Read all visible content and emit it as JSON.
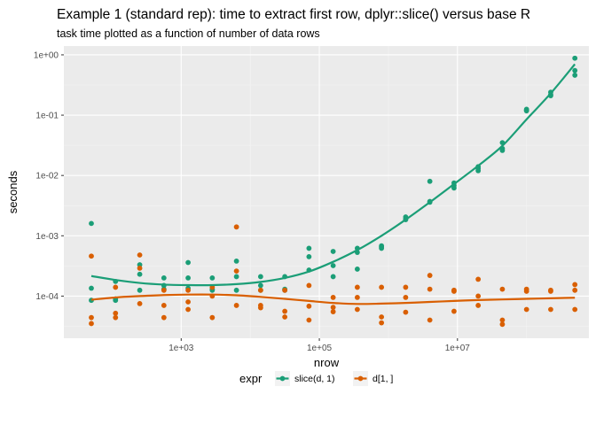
{
  "chart_data": {
    "type": "scatter",
    "title": "Example 1 (standard rep): time to extract first row, dplyr::slice() versus base R",
    "subtitle": "task time plotted as a function of number of data rows",
    "xlabel": "nrow",
    "ylabel": "seconds",
    "x_scale": "log10",
    "y_scale": "log10",
    "xlim": [
      20,
      800000000
    ],
    "ylim": [
      2e-05,
      1.4
    ],
    "x_ticks": [
      {
        "value": 1000,
        "label": "1e+03"
      },
      {
        "value": 100000,
        "label": "1e+05"
      },
      {
        "value": 10000000,
        "label": "1e+07"
      }
    ],
    "y_ticks": [
      {
        "value": 0.0001,
        "label": "1e-04"
      },
      {
        "value": 0.001,
        "label": "1e-03"
      },
      {
        "value": 0.01,
        "label": "1e-02"
      },
      {
        "value": 0.1,
        "label": "1e-01"
      },
      {
        "value": 1,
        "label": "1e+00"
      }
    ],
    "grid": true,
    "legend": {
      "title": "expr",
      "position": "bottom"
    },
    "series": [
      {
        "name": "slice(d, 1)",
        "color": "#1b9e77",
        "points": [
          [
            50,
            0.0016
          ],
          [
            50,
            0.000135
          ],
          [
            50,
            8.5e-05
          ],
          [
            112,
            0.000175
          ],
          [
            112,
            9e-05
          ],
          [
            112,
            8.5e-05
          ],
          [
            251,
            0.00033
          ],
          [
            251,
            0.00023
          ],
          [
            251,
            0.000125
          ],
          [
            562,
            0.0002
          ],
          [
            562,
            0.00015
          ],
          [
            562,
            0.00013
          ],
          [
            1259,
            0.00036
          ],
          [
            1259,
            0.0002
          ],
          [
            1259,
            0.000135
          ],
          [
            2818,
            0.0002
          ],
          [
            2818,
            0.00013
          ],
          [
            2818,
            0.000125
          ],
          [
            6310,
            0.00038
          ],
          [
            6310,
            0.00021
          ],
          [
            6310,
            0.000125
          ],
          [
            14125,
            0.00021
          ],
          [
            14125,
            0.00015
          ],
          [
            14125,
            0.000125
          ],
          [
            31623,
            0.00021
          ],
          [
            31623,
            0.00013
          ],
          [
            31623,
            0.000125
          ],
          [
            70795,
            0.00062
          ],
          [
            70795,
            0.00045
          ],
          [
            70795,
            0.00027
          ],
          [
            158489,
            0.00055
          ],
          [
            158489,
            0.00032
          ],
          [
            158489,
            0.00021
          ],
          [
            354813,
            0.00062
          ],
          [
            354813,
            0.00053
          ],
          [
            354813,
            0.00028
          ],
          [
            794328,
            0.00068
          ],
          [
            794328,
            0.00065
          ],
          [
            794328,
            0.00062
          ],
          [
            1778279,
            0.00205
          ],
          [
            1778279,
            0.0019
          ],
          [
            1778279,
            0.00185
          ],
          [
            3981072,
            0.008
          ],
          [
            3981072,
            0.0037
          ],
          [
            3981072,
            0.0036
          ],
          [
            8912509,
            0.0075
          ],
          [
            8912509,
            0.0068
          ],
          [
            8912509,
            0.0062
          ],
          [
            19952623,
            0.014
          ],
          [
            19952623,
            0.013
          ],
          [
            19952623,
            0.012
          ],
          [
            44668359,
            0.035
          ],
          [
            44668359,
            0.028
          ],
          [
            44668359,
            0.026
          ],
          [
            100000000,
            0.125
          ],
          [
            100000000,
            0.12
          ],
          [
            100000000,
            0.118
          ],
          [
            223872114,
            0.24
          ],
          [
            223872114,
            0.22
          ],
          [
            223872114,
            0.21
          ],
          [
            501187234,
            0.88
          ],
          [
            501187234,
            0.55
          ],
          [
            501187234,
            0.46
          ]
        ],
        "smooth": [
          [
            50,
            0.000215
          ],
          [
            112,
            0.000185
          ],
          [
            251,
            0.000165
          ],
          [
            562,
            0.000155
          ],
          [
            1259,
            0.000152
          ],
          [
            2818,
            0.000152
          ],
          [
            6310,
            0.000158
          ],
          [
            14125,
            0.000172
          ],
          [
            31623,
            0.0002
          ],
          [
            70795,
            0.000255
          ],
          [
            158489,
            0.00037
          ],
          [
            354813,
            0.00058
          ],
          [
            794328,
            0.001
          ],
          [
            1778279,
            0.00185
          ],
          [
            3981072,
            0.0036
          ],
          [
            8912509,
            0.0072
          ],
          [
            19952623,
            0.0145
          ],
          [
            44668359,
            0.031
          ],
          [
            100000000,
            0.085
          ],
          [
            223872114,
            0.23
          ],
          [
            501187234,
            0.7
          ]
        ]
      },
      {
        "name": "d[1, ]",
        "color": "#d95f02",
        "points": [
          [
            50,
            0.00046
          ],
          [
            50,
            4.4e-05
          ],
          [
            50,
            3.5e-05
          ],
          [
            112,
            0.00014
          ],
          [
            112,
            5.2e-05
          ],
          [
            112,
            4.4e-05
          ],
          [
            251,
            0.00048
          ],
          [
            251,
            0.00029
          ],
          [
            251,
            7.5e-05
          ],
          [
            562,
            0.000125
          ],
          [
            562,
            7e-05
          ],
          [
            562,
            4.4e-05
          ],
          [
            1259,
            0.000125
          ],
          [
            1259,
            8e-05
          ],
          [
            1259,
            6e-05
          ],
          [
            2818,
            0.00014
          ],
          [
            2818,
            0.0001
          ],
          [
            2818,
            4.4e-05
          ],
          [
            6310,
            0.0014
          ],
          [
            6310,
            0.00026
          ],
          [
            6310,
            7e-05
          ],
          [
            14125,
            0.000125
          ],
          [
            14125,
            7e-05
          ],
          [
            14125,
            6.4e-05
          ],
          [
            31623,
            0.000125
          ],
          [
            31623,
            5.6e-05
          ],
          [
            31623,
            4.5e-05
          ],
          [
            70795,
            0.00015
          ],
          [
            70795,
            6.8e-05
          ],
          [
            70795,
            4e-05
          ],
          [
            158489,
            9.5e-05
          ],
          [
            158489,
            6.5e-05
          ],
          [
            158489,
            5.5e-05
          ],
          [
            354813,
            0.00014
          ],
          [
            354813,
            9.5e-05
          ],
          [
            354813,
            6e-05
          ],
          [
            794328,
            0.00014
          ],
          [
            794328,
            4.5e-05
          ],
          [
            794328,
            3.6e-05
          ],
          [
            1778279,
            0.00014
          ],
          [
            1778279,
            9.5e-05
          ],
          [
            1778279,
            5.4e-05
          ],
          [
            3981072,
            0.00022
          ],
          [
            3981072,
            0.00013
          ],
          [
            3981072,
            4e-05
          ],
          [
            8912509,
            0.000125
          ],
          [
            8912509,
            0.00012
          ],
          [
            8912509,
            5.6e-05
          ],
          [
            19952623,
            0.00019
          ],
          [
            19952623,
            0.0001
          ],
          [
            19952623,
            7e-05
          ],
          [
            44668359,
            0.00013
          ],
          [
            44668359,
            4e-05
          ],
          [
            44668359,
            3.4e-05
          ],
          [
            100000000,
            0.00013
          ],
          [
            100000000,
            0.00012
          ],
          [
            100000000,
            6e-05
          ],
          [
            223872114,
            0.000125
          ],
          [
            223872114,
            0.00012
          ],
          [
            223872114,
            6e-05
          ],
          [
            501187234,
            0.000155
          ],
          [
            501187234,
            0.000125
          ],
          [
            501187234,
            6e-05
          ]
        ],
        "smooth": [
          [
            50,
            8.7e-05
          ],
          [
            112,
            9.5e-05
          ],
          [
            251,
            0.0001
          ],
          [
            562,
            0.000104
          ],
          [
            1259,
            0.000106
          ],
          [
            2818,
            0.000106
          ],
          [
            6310,
            0.000103
          ],
          [
            14125,
            9.7e-05
          ],
          [
            31623,
            9e-05
          ],
          [
            70795,
            8.3e-05
          ],
          [
            158489,
            7.7e-05
          ],
          [
            354813,
            7.4e-05
          ],
          [
            794328,
            7.5e-05
          ],
          [
            1778279,
            7.7e-05
          ],
          [
            3981072,
            8e-05
          ],
          [
            8912509,
            8.3e-05
          ],
          [
            19952623,
            8.6e-05
          ],
          [
            44668359,
            8.8e-05
          ],
          [
            100000000,
            9e-05
          ],
          [
            223872114,
            9.2e-05
          ],
          [
            501187234,
            9.4e-05
          ]
        ]
      }
    ]
  }
}
